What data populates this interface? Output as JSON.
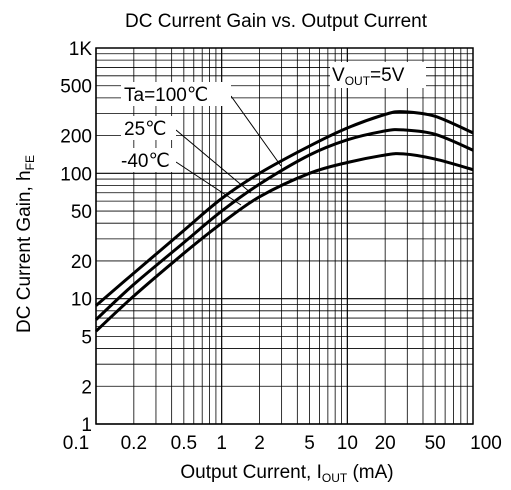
{
  "chart_data": {
    "type": "line",
    "title": "DC Current Gain vs. Output Current",
    "xlabel": {
      "main": "Output Current, I",
      "sub": "OUT",
      "unit": " (mA)"
    },
    "ylabel": {
      "main": "DC Current Gain, h",
      "sub": "FE"
    },
    "x_scale": "log",
    "y_scale": "log",
    "xlim": [
      0.1,
      100
    ],
    "ylim": [
      1,
      1000
    ],
    "x_ticks": [
      {
        "v": 0.1,
        "label": "0.1"
      },
      {
        "v": 0.2,
        "label": "0.2"
      },
      {
        "v": 0.5,
        "label": "0.5"
      },
      {
        "v": 1,
        "label": "1"
      },
      {
        "v": 2,
        "label": "2"
      },
      {
        "v": 5,
        "label": "5"
      },
      {
        "v": 10,
        "label": "10"
      },
      {
        "v": 20,
        "label": "20"
      },
      {
        "v": 50,
        "label": "50"
      },
      {
        "v": 100,
        "label": "100"
      }
    ],
    "y_ticks": [
      {
        "v": 1,
        "label": "1"
      },
      {
        "v": 2,
        "label": "2"
      },
      {
        "v": 5,
        "label": "5"
      },
      {
        "v": 10,
        "label": "10"
      },
      {
        "v": 20,
        "label": "20"
      },
      {
        "v": 50,
        "label": "50"
      },
      {
        "v": 100,
        "label": "100"
      },
      {
        "v": 200,
        "label": "200"
      },
      {
        "v": 500,
        "label": "500"
      },
      {
        "v": 1000,
        "label": "1K"
      }
    ],
    "grid": true,
    "condition": {
      "main": "V",
      "sub": "OUT",
      "rest": "=5V"
    },
    "series": [
      {
        "name": "Ta=100℃",
        "x": [
          0.1,
          0.2,
          0.5,
          1,
          2,
          5,
          10,
          20,
          28,
          50,
          100
        ],
        "y": [
          8.8,
          16,
          35,
          63,
          100,
          165,
          230,
          295,
          310,
          285,
          210
        ]
      },
      {
        "name": "25℃",
        "x": [
          0.1,
          0.2,
          0.5,
          1,
          2,
          5,
          10,
          20,
          28,
          50,
          100
        ],
        "y": [
          6.8,
          13,
          28,
          50,
          82,
          140,
          185,
          218,
          222,
          205,
          153
        ]
      },
      {
        "name": "-40℃",
        "x": [
          0.1,
          0.2,
          0.5,
          1,
          2,
          5,
          10,
          20,
          28,
          50,
          100
        ],
        "y": [
          5.5,
          10.5,
          23,
          40,
          65,
          100,
          122,
          140,
          143,
          130,
          107
        ]
      }
    ]
  }
}
